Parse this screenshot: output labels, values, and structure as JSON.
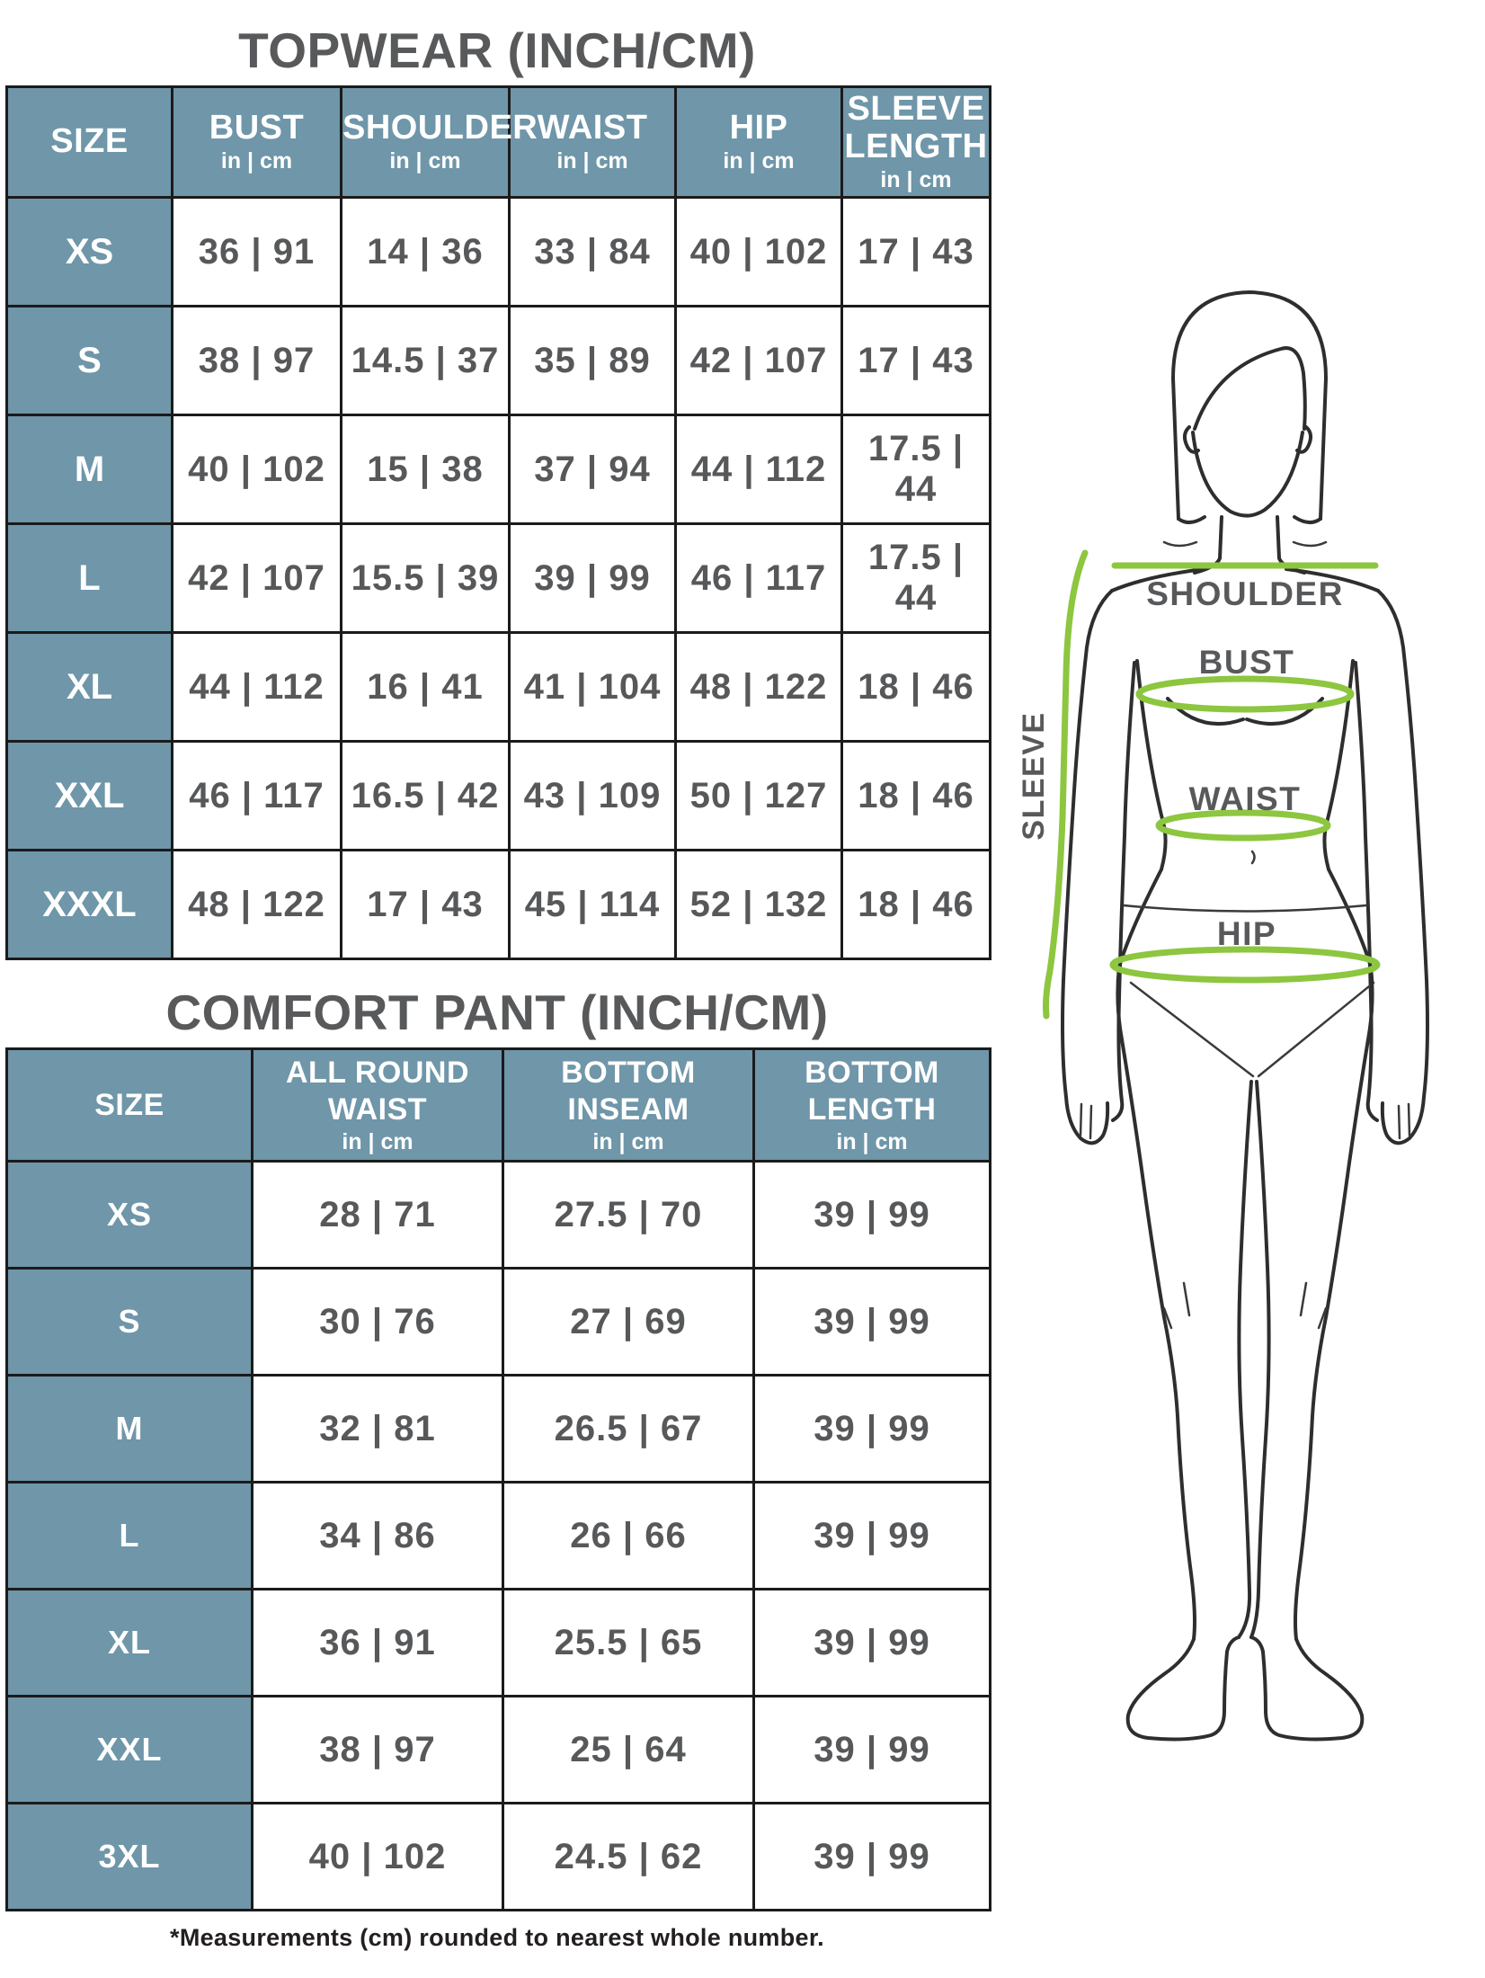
{
  "topwear": {
    "title": "TOPWEAR (INCH/CM)",
    "header": [
      {
        "label": "SIZE",
        "unit": ""
      },
      {
        "label": "BUST",
        "unit": "in | cm"
      },
      {
        "label": "SHOULDER",
        "unit": "in | cm"
      },
      {
        "label": "WAIST",
        "unit": "in | cm"
      },
      {
        "label": "HIP",
        "unit": "in | cm"
      },
      {
        "label": "SLEEVE LENGTH",
        "unit": "in | cm"
      }
    ],
    "rows": [
      [
        "XS",
        "36 | 91",
        "14 | 36",
        "33 | 84",
        "40 | 102",
        "17 | 43"
      ],
      [
        "S",
        "38 | 97",
        "14.5 | 37",
        "35 | 89",
        "42 | 107",
        "17 | 43"
      ],
      [
        "M",
        "40 | 102",
        "15 | 38",
        "37 | 94",
        "44 | 112",
        "17.5 | 44"
      ],
      [
        "L",
        "42 | 107",
        "15.5 | 39",
        "39 | 99",
        "46 | 117",
        "17.5 | 44"
      ],
      [
        "XL",
        "44 | 112",
        "16 | 41",
        "41 | 104",
        "48 | 122",
        "18 | 46"
      ],
      [
        "XXL",
        "46 | 117",
        "16.5 | 42",
        "43 | 109",
        "50 | 127",
        "18 | 46"
      ],
      [
        "XXXL",
        "48 | 122",
        "17 | 43",
        "45 | 114",
        "52 | 132",
        "18 | 46"
      ]
    ]
  },
  "comfort_pant": {
    "title": "COMFORT PANT (INCH/CM)",
    "header": [
      {
        "label": "SIZE",
        "unit": ""
      },
      {
        "label": "ALL ROUND WAIST",
        "unit": "in | cm"
      },
      {
        "label": "BOTTOM INSEAM",
        "unit": "in | cm"
      },
      {
        "label": "BOTTOM LENGTH",
        "unit": "in | cm"
      }
    ],
    "rows": [
      [
        "XS",
        "28 | 71",
        "27.5 | 70",
        "39 | 99"
      ],
      [
        "S",
        "30 | 76",
        "27 | 69",
        "39 | 99"
      ],
      [
        "M",
        "32 | 81",
        "26.5 | 67",
        "39 | 99"
      ],
      [
        "L",
        "34 | 86",
        "26 | 66",
        "39 | 99"
      ],
      [
        "XL",
        "36 | 91",
        "25.5 | 65",
        "39 | 99"
      ],
      [
        "XXL",
        "38 | 97",
        "25 | 64",
        "39 | 99"
      ],
      [
        "3XL",
        "40 | 102",
        "24.5 | 62",
        "39 | 99"
      ]
    ]
  },
  "figure": {
    "shoulder_label": "SHOULDER",
    "bust_label": "BUST",
    "waist_label": "WAIST",
    "hip_label": "HIP",
    "sleeve_label": "SLEEVE"
  },
  "footnote": "*Measurements (cm) rounded to nearest whole number.",
  "colors": {
    "header_bg": "#6f96a9",
    "accent_green": "#8dc63f",
    "text_dark": "#58595b"
  }
}
